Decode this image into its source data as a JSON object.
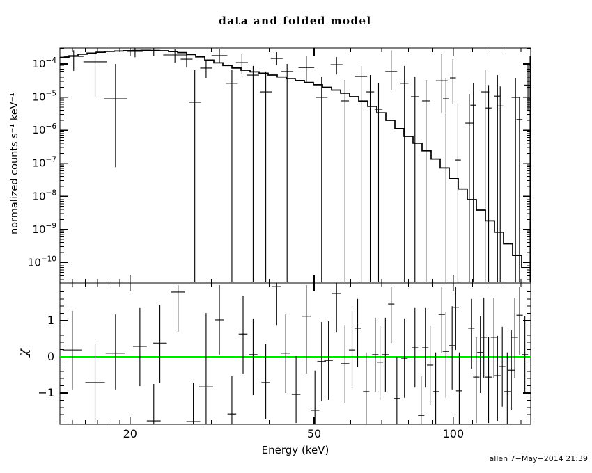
{
  "title": "data and folded model",
  "signature": "allen  7−May−2014 21:39",
  "colors": {
    "background": "#ffffff",
    "foreground": "#000000",
    "model_line": "#000000",
    "data_points": "#000000",
    "zero_line_green": "#00e400"
  },
  "chart_data": {
    "type": "scatter",
    "description": "Two-panel X-ray spectral fit plot: top panel shows counts spectrum data crosses with a stepped folded model on log-log axes; bottom panel shows chi residuals about a green zero line.",
    "xlabel": "Energy (keV)",
    "xscale": "log",
    "xlim": [
      14.1,
      147
    ],
    "xticks": [
      {
        "value": 20,
        "label": "20"
      },
      {
        "value": 50,
        "label": "50"
      },
      {
        "value": 100,
        "label": "100"
      }
    ],
    "xticks_minor": [
      15,
      16,
      17,
      18,
      19,
      30,
      40,
      60,
      70,
      80,
      90,
      110,
      120,
      130,
      140
    ],
    "panels": [
      {
        "name": "spectrum",
        "ylabel": "normalized counts s⁻¹ keV⁻¹",
        "yscale": "log",
        "ylim": [
          2.5e-11,
          0.000305
        ],
        "yticks": [
          {
            "exp": -4,
            "label": "10⁻⁴"
          },
          {
            "exp": -5,
            "label": "10⁻⁵"
          },
          {
            "exp": -6,
            "label": "10⁻⁶"
          },
          {
            "exp": -7,
            "label": "10⁻⁷"
          },
          {
            "exp": -8,
            "label": "10⁻⁸"
          },
          {
            "exp": -9,
            "label": "10⁻⁹"
          },
          {
            "exp": -10,
            "label": "10⁻¹⁰"
          }
        ],
        "model_step_curve": [
          [
            14.1,
            0.00015
          ],
          [
            16,
            0.000205
          ],
          [
            18,
            0.00024
          ],
          [
            20,
            0.000255
          ],
          [
            22,
            0.00026
          ],
          [
            24,
            0.00025
          ],
          [
            26,
            0.00022
          ],
          [
            28,
            0.000175
          ],
          [
            30,
            0.000125
          ],
          [
            32,
            9.5e-05
          ],
          [
            34,
            7.5e-05
          ],
          [
            36,
            6.2e-05
          ],
          [
            39,
            5.2e-05
          ],
          [
            42,
            4.2e-05
          ],
          [
            45,
            3.5e-05
          ],
          [
            48,
            2.9e-05
          ],
          [
            52,
            2.2e-05
          ],
          [
            56,
            1.6e-05
          ],
          [
            60,
            1.15e-05
          ],
          [
            64,
            7.5e-06
          ],
          [
            68,
            4.5e-06
          ],
          [
            72,
            2.4e-06
          ],
          [
            76,
            1.2e-06
          ],
          [
            80,
            6.5e-07
          ],
          [
            85,
            3.4e-07
          ],
          [
            90,
            1.7e-07
          ],
          [
            96,
            7e-08
          ],
          [
            101,
            3e-08
          ],
          [
            106,
            1.4e-08
          ],
          [
            111,
            6.5e-09
          ],
          [
            117,
            2.8e-09
          ],
          [
            123,
            1.2e-09
          ],
          [
            129,
            5e-10
          ],
          [
            136,
            2e-10
          ],
          [
            141,
            1e-10
          ],
          [
            147,
            4.5e-11
          ]
        ],
        "points_format": [
          "energy_keV",
          "value",
          "err_hi",
          "err_lo_null_means_below_axis",
          "bin_halfwidth_factor"
        ],
        "points": [
          [
            15.1,
            0.00017,
            0.00026,
            6.2e-05,
            1.05
          ],
          [
            16.8,
            0.000116,
            0.0002,
            9.8e-06,
            1.06
          ],
          [
            18.6,
            8.9e-06,
            0.0001,
            7.6e-08,
            1.06
          ],
          [
            20.5,
            0.00024,
            0.0003,
            0.00016,
            1.04
          ],
          [
            22.5,
            0.000246,
            0.0003,
            0.000179,
            1.06
          ],
          [
            25.0,
            0.000188,
            0.000277,
            0.00011,
            1.06
          ],
          [
            26.5,
            0.00014,
            0.000228,
            7.8e-05,
            1.03
          ],
          [
            27.6,
            7e-06,
            6.8e-05,
            null,
            1.03
          ],
          [
            29.2,
            7.5e-05,
            0.000134,
            3.8e-05,
            1.03
          ],
          [
            31.2,
            0.00018,
            0.00029,
            0.000105,
            1.04
          ],
          [
            33.2,
            2.6e-05,
            6.8e-05,
            null,
            1.03
          ],
          [
            34.9,
            0.00011,
            0.0002,
            5.1e-05,
            1.03
          ],
          [
            36.9,
            4.6e-05,
            8.7e-05,
            null,
            1.03
          ],
          [
            39.3,
            1.44e-05,
            5.9e-05,
            null,
            1.03
          ],
          [
            41.5,
            0.000147,
            0.000228,
            9.1e-05,
            1.03
          ],
          [
            43.7,
            5.9e-05,
            0.0001,
            null,
            1.03
          ],
          [
            48.1,
            7.8e-05,
            0.000179,
            2.8e-05,
            1.04
          ],
          [
            51.9,
            9.8e-06,
            4.2e-05,
            null,
            1.03
          ],
          [
            55.9,
            9.5e-05,
            0.000162,
            4.8e-05,
            1.03
          ],
          [
            58.3,
            7.7e-06,
            3.3e-05,
            null,
            1.02
          ],
          [
            63.2,
            4.2e-05,
            8.7e-05,
            null,
            1.03
          ],
          [
            66.1,
            1.44e-05,
            4.6e-05,
            null,
            1.02
          ],
          [
            68.9,
            4.3e-06,
            2.6e-05,
            null,
            1.02
          ],
          [
            73.4,
            5.9e-05,
            0.00026,
            1.6e-05,
            1.03
          ],
          [
            78.4,
            2.6e-05,
            8.7e-05,
            null,
            1.02
          ],
          [
            82.6,
            1.03e-05,
            4.2e-05,
            null,
            1.02
          ],
          [
            87.3,
            7.7e-06,
            3.3e-05,
            null,
            1.02
          ],
          [
            94.4,
            3.1e-05,
            0.0002,
            3.2e-06,
            1.03
          ],
          [
            96.4,
            8.9e-06,
            3.8e-05,
            null,
            1.015
          ],
          [
            99.8,
            3.8e-05,
            0.00014,
            6e-06,
            1.015
          ],
          [
            102.3,
            1.25e-07,
            6e-06,
            null,
            1.015
          ],
          [
            108.3,
            1.63e-06,
            1.25e-05,
            null,
            1.02
          ],
          [
            110.5,
            5.7e-06,
            2.6e-05,
            null,
            1.015
          ],
          [
            117.2,
            1.44e-05,
            6.8e-05,
            null,
            1.02
          ],
          [
            119.2,
            4.7e-06,
            2.3e-05,
            null,
            1.015
          ],
          [
            124.6,
            1.07e-05,
            4.6e-05,
            null,
            1.015
          ],
          [
            126.3,
            5.4e-06,
            2.1e-05,
            null,
            1.015
          ],
          [
            136.3,
            9.8e-06,
            3.8e-05,
            null,
            1.02
          ],
          [
            139.0,
            2.1e-06,
            9.8e-06,
            null,
            1.015
          ],
          [
            145.0,
            2.3e-05,
            8.7e-05,
            3.7e-06,
            1.02
          ],
          [
            146.5,
            6.8e-05,
            0.000179,
            null,
            1.01
          ]
        ]
      },
      {
        "name": "residuals",
        "ylabel": "χ",
        "yscale": "linear",
        "ylim": [
          -1.87,
          2.04
        ],
        "yticks": [
          {
            "value": 1,
            "label": "1"
          },
          {
            "value": 0,
            "label": "0"
          },
          {
            "value": -1,
            "label": "−1"
          }
        ],
        "ytick_minor_step": 0.2,
        "zero_line": 0,
        "points_format": [
          "energy_keV",
          "chi",
          "err_hi_null_means_above_axis",
          "err_lo_null_means_below_axis"
        ],
        "points": [
          [
            15.0,
            0.19,
            1.27,
            -0.9
          ],
          [
            16.8,
            -0.71,
            0.35,
            -1.81
          ],
          [
            18.6,
            0.1,
            1.17,
            -0.9
          ],
          [
            21.0,
            0.29,
            1.35,
            -0.81
          ],
          [
            22.5,
            -1.77,
            -0.75,
            null
          ],
          [
            23.2,
            0.38,
            1.44,
            -0.71
          ],
          [
            25.4,
            1.79,
            1.98,
            0.69
          ],
          [
            27.4,
            -1.79,
            -0.71,
            null
          ],
          [
            29.2,
            -0.83,
            1.21,
            null
          ],
          [
            31.2,
            1.02,
            1.98,
            0.06
          ],
          [
            33.2,
            -1.58,
            -0.52,
            null
          ],
          [
            35.1,
            0.63,
            1.69,
            -0.46
          ],
          [
            36.9,
            0.06,
            1.06,
            -1.06
          ],
          [
            39.3,
            -0.71,
            0.35,
            -1.73
          ],
          [
            41.5,
            1.94,
            null,
            0.88
          ],
          [
            43.4,
            0.1,
            1.17,
            -1.0
          ],
          [
            45.7,
            -1.04,
            0.02,
            -1.83
          ],
          [
            48.1,
            1.12,
            1.98,
            -0.46
          ],
          [
            50.2,
            -1.48,
            -0.38,
            null
          ],
          [
            51.9,
            -0.13,
            0.96,
            -1.23
          ],
          [
            53.7,
            -0.1,
            0.98,
            -1.19
          ],
          [
            55.9,
            1.75,
            null,
            0.67
          ],
          [
            58.3,
            -0.19,
            0.88,
            -1.29
          ],
          [
            60.4,
            0.19,
            1.27,
            -0.87
          ],
          [
            62.1,
            0.79,
            1.6,
            -0.29
          ],
          [
            64.8,
            -0.96,
            0.12,
            null
          ],
          [
            67.8,
            0.06,
            1.08,
            -0.96
          ],
          [
            69.4,
            -0.15,
            0.87,
            -1.19
          ],
          [
            71.3,
            0.06,
            1.08,
            -0.96
          ],
          [
            73.4,
            1.46,
            1.94,
            0.38
          ],
          [
            75.5,
            -1.15,
            0.0,
            null
          ],
          [
            78.4,
            -0.04,
            1.06,
            -1.13
          ],
          [
            82.6,
            0.25,
            1.35,
            -0.85
          ],
          [
            85.2,
            -1.62,
            -0.52,
            null
          ],
          [
            87.0,
            0.25,
            1.35,
            -0.85
          ],
          [
            89.1,
            -0.23,
            0.87,
            -1.33
          ],
          [
            91.6,
            -0.96,
            0.12,
            null
          ],
          [
            94.4,
            1.17,
            1.94,
            0.1
          ],
          [
            96.4,
            0.15,
            1.25,
            -1.13
          ],
          [
            99.4,
            0.31,
            1.4,
            -0.9
          ],
          [
            101.2,
            1.37,
            1.94,
            0.19
          ],
          [
            103.0,
            -0.94,
            0.12,
            null
          ],
          [
            109.4,
            0.79,
            1.6,
            -0.33
          ],
          [
            112.1,
            -0.56,
            0.54,
            -1.83
          ],
          [
            114.4,
            0.12,
            1.12,
            -1.0
          ],
          [
            116.4,
            0.54,
            1.63,
            -0.58
          ],
          [
            119.2,
            -0.56,
            0.54,
            -1.83
          ],
          [
            122.4,
            0.54,
            1.63,
            -0.58
          ],
          [
            124.6,
            -0.52,
            0.58,
            -1.77
          ],
          [
            127.6,
            -0.27,
            0.83,
            -1.38
          ],
          [
            130.8,
            -0.96,
            0.12,
            null
          ],
          [
            133.5,
            -0.37,
            0.73,
            -1.48
          ],
          [
            135.8,
            0.54,
            1.63,
            -0.58
          ],
          [
            139.1,
            1.15,
            1.94,
            0.06
          ],
          [
            142.8,
            0.06,
            1.12,
            -0.96
          ]
        ]
      }
    ]
  }
}
